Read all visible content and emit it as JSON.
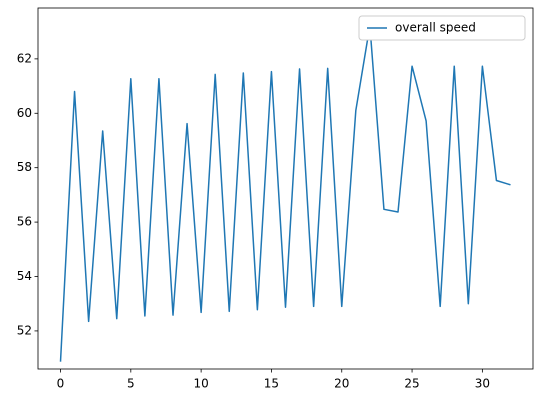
{
  "chart_data": {
    "type": "line",
    "x": [
      0,
      1,
      2,
      3,
      4,
      5,
      6,
      7,
      8,
      9,
      10,
      11,
      12,
      13,
      14,
      15,
      16,
      17,
      18,
      19,
      20,
      21,
      22,
      23,
      24,
      25,
      26,
      27,
      28,
      29,
      30,
      31,
      32
    ],
    "series": [
      {
        "name": "overall speed",
        "color": "#1f77b4",
        "values": [
          50.87,
          60.8,
          52.35,
          59.35,
          52.45,
          61.27,
          52.55,
          61.27,
          52.58,
          59.62,
          52.68,
          61.43,
          52.72,
          61.48,
          52.78,
          61.53,
          52.87,
          61.63,
          52.9,
          61.65,
          52.9,
          60.1,
          63.22,
          56.47,
          56.37,
          61.73,
          59.72,
          52.9,
          61.73,
          53.0,
          61.73,
          57.53,
          57.37
        ]
      }
    ],
    "xlim": [
      -1.6,
      33.6
    ],
    "xticks": [
      0,
      5,
      10,
      15,
      20,
      25,
      30
    ],
    "ylim": [
      50.6,
      63.87
    ],
    "yticks": [
      52,
      54,
      56,
      58,
      60,
      62
    ],
    "grid": false,
    "legend": "upper right"
  }
}
